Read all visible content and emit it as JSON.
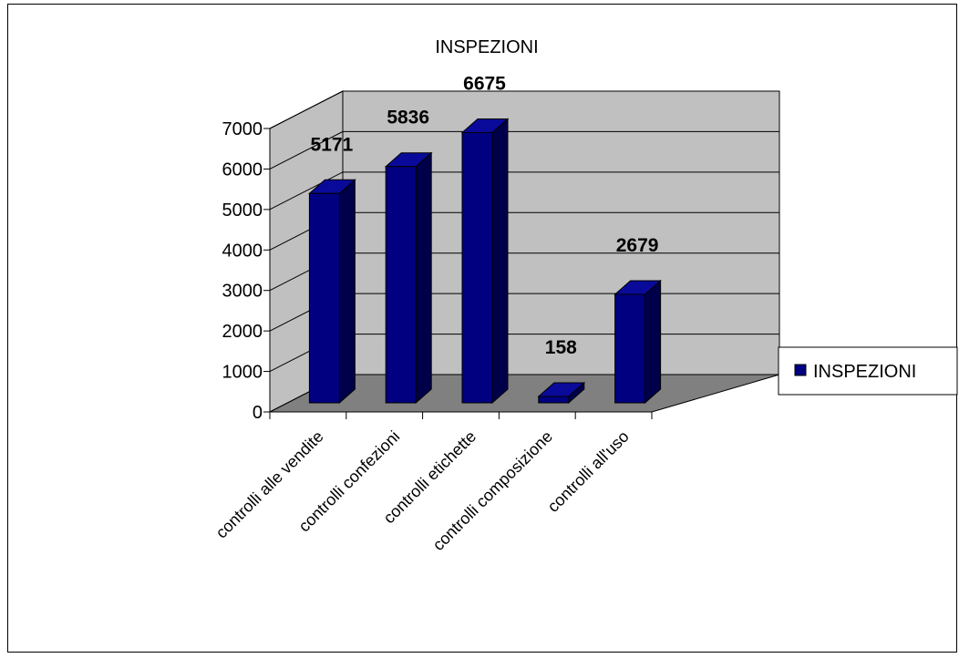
{
  "chart_data": {
    "type": "bar",
    "title": "INSPEZIONI",
    "categories": [
      "controlli alle vendite",
      "controlli confezioni",
      "controlli etichette",
      "controlli  composizione",
      "controlli all'uso"
    ],
    "series": [
      {
        "name": "INSPEZIONI",
        "values": [
          5171,
          5836,
          6675,
          158,
          2679
        ]
      }
    ],
    "data_labels": [
      "5171",
      "5836",
      "6675",
      "158",
      "2679"
    ],
    "ylim": [
      0,
      7000
    ],
    "yticks": [
      0,
      1000,
      2000,
      3000,
      4000,
      5000,
      6000,
      7000
    ],
    "ytick_labels": [
      "0",
      "1000",
      "2000",
      "3000",
      "4000",
      "5000",
      "6000",
      "7000"
    ],
    "grid": true,
    "style": "3d-column",
    "legend": {
      "position": "right",
      "entries": [
        "INSPEZIONI"
      ]
    },
    "colors": {
      "bar_front": "#000080",
      "bar_side": "#00004a",
      "bar_top": "#0a0a9a",
      "back_wall": "#c0c0c0",
      "floor": "#808080",
      "gridline": "#000000"
    }
  }
}
